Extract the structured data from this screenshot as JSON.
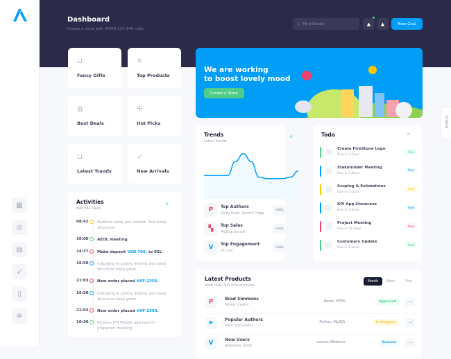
{
  "header": {
    "title": "Dashboard",
    "subtitle": "Create a store with #YDR-124-346 code",
    "search_placeholder": "Find Goods",
    "new_goal": "New Goal"
  },
  "sidebar": {
    "icons": [
      "dashboard-icon",
      "support-icon",
      "calendar-icon",
      "rocket-icon",
      "map-icon",
      "settings-icon"
    ]
  },
  "tiles": [
    {
      "label": "Fancy Gifts",
      "icon": "basket-icon"
    },
    {
      "label": "Top Products",
      "icon": "cross-icon"
    },
    {
      "label": "Best Deals",
      "icon": "fingerprint-icon"
    },
    {
      "label": "Hot Picks",
      "icon": "pinwheel-icon"
    },
    {
      "label": "Latest Trands",
      "icon": "basket-icon"
    },
    {
      "label": "New Arrivals",
      "icon": "rocket-icon"
    }
  ],
  "banner": {
    "line1": "We are working",
    "line2": "to boost lovely mood",
    "button": "Create a Store"
  },
  "explore": "Explore",
  "activities": {
    "title": "Activities",
    "subtitle": "890,344 Sales",
    "items": [
      {
        "time": "08:42",
        "color": "#ffc700",
        "text": "Outlines keep you honest. And keep structure",
        "bold": false
      },
      {
        "time": "10:00",
        "color": "#50cd89",
        "text": "AEOL meeting",
        "bold": true
      },
      {
        "time": "14:37",
        "color": "#f1416c",
        "text": "Make deposit ",
        "link": "USD 700",
        "after": ". to ESL",
        "bold": true
      },
      {
        "time": "16:50",
        "color": "#009ef7",
        "text": "Indulging in poorly driving and keep structure keep great",
        "bold": false
      },
      {
        "time": "21:03",
        "color": "#f1416c",
        "text": "New order placed ",
        "link": "#XF-2356",
        "after": ".",
        "bold": true
      },
      {
        "time": "16:50",
        "color": "#009ef7",
        "text": "Indulging in poorly driving and keep structure keep great",
        "bold": false
      },
      {
        "time": "21:03",
        "color": "#f1416c",
        "text": "New order placed ",
        "link": "#XF-2356",
        "after": ".",
        "bold": true
      },
      {
        "time": "10:30",
        "color": "#50cd89",
        "text": "Finance KPI Mobile app launch preparion meeting",
        "bold": false
      }
    ]
  },
  "trends": {
    "title": "Trends",
    "subtitle": "Latest trends",
    "chart_values": [
      30,
      30,
      30,
      30,
      48,
      58,
      48,
      28,
      26,
      26,
      26,
      28,
      36
    ],
    "items": [
      {
        "name": "Top Authors",
        "sub": "Ricky Hunt, Sandra Trepp",
        "badge": "+82$",
        "icon": "pinterest-icon",
        "color": "#f1416c"
      },
      {
        "name": "Top Sales",
        "sub": "PitStop Emails",
        "badge": "+82$",
        "icon": "figma-icon",
        "color": "#f1416c"
      },
      {
        "name": "Top Engagement",
        "sub": "KT.com",
        "badge": "+82$",
        "icon": "vimeo-icon",
        "color": "#009ef7"
      }
    ]
  },
  "todo": {
    "title": "Todo",
    "items": [
      {
        "name": "Create FireStone Logo",
        "due": "Due in 2 Days",
        "badge": "New",
        "color": "#50cd89",
        "bg": "#e8fff3"
      },
      {
        "name": "Stakeholder Meeting",
        "due": "Due in 3 Days",
        "badge": "New",
        "color": "#009ef7",
        "bg": "#f1faff"
      },
      {
        "name": "Scoping & Estimations",
        "due": "Due in 5 Days",
        "badge": "New",
        "color": "#ffc700",
        "bg": "#fff8dd"
      },
      {
        "name": "KPI App Showcase",
        "due": "Due in 2 Days",
        "badge": "New",
        "color": "#009ef7",
        "bg": "#f1faff"
      },
      {
        "name": "Project Meeting",
        "due": "Due in 12 Days",
        "badge": "New",
        "color": "#f1416c",
        "bg": "#fff5f8"
      },
      {
        "name": "Customers Update",
        "due": "Due in 1 week",
        "badge": "New",
        "color": "#50cd89",
        "bg": "#e8fff3"
      }
    ]
  },
  "products": {
    "title": "Latest Products",
    "subtitle": "More than 400 new products",
    "tabs": [
      "Month",
      "Week",
      "Day"
    ],
    "active_tab": "Month",
    "rows": [
      {
        "name": "Brad Simmons",
        "sub": "Movie Creator",
        "tech": "React, HTML",
        "status": "Approved",
        "color": "#50cd89",
        "bg": "#e8fff3",
        "icon": "pinterest-icon"
      },
      {
        "name": "Popular Authors",
        "sub": "Most Successful",
        "tech": "Python, MySQL",
        "status": "In Progress",
        "color": "#ffc700",
        "bg": "#fff8dd",
        "icon": "telegram-icon"
      },
      {
        "name": "New Users",
        "sub": "Awesome Users",
        "tech": "Laravel,Metronic",
        "status": "Success",
        "color": "#009ef7",
        "bg": "#f1faff",
        "icon": "vimeo-icon"
      }
    ]
  }
}
